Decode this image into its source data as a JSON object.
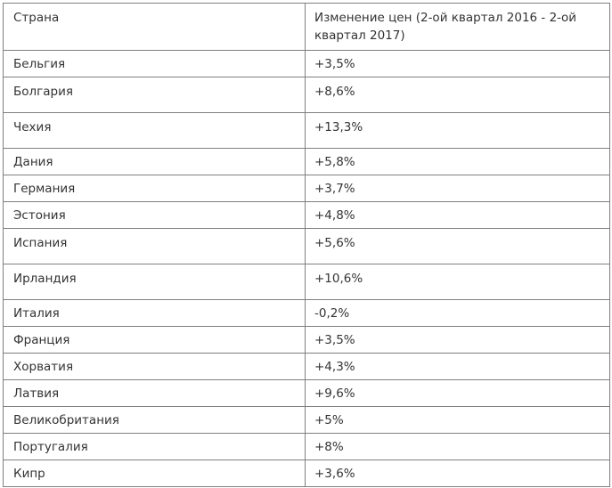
{
  "table": {
    "header": {
      "country": "Страна",
      "change": "Изменение цен (2-ой квартал 2016 - 2-ой квартал 2017)"
    },
    "rows": [
      {
        "country": "Бельгия",
        "change": "+3,5%"
      },
      {
        "country": "Болгария",
        "change": "+8,6%"
      },
      {
        "country": "Чехия",
        "change": "+13,3%"
      },
      {
        "country": "Дания",
        "change": "+5,8%"
      },
      {
        "country": "Германия",
        "change": "+3,7%"
      },
      {
        "country": "Эстония",
        "change": "+4,8%"
      },
      {
        "country": "Испания",
        "change": "+5,6%"
      },
      {
        "country": "Ирландия",
        "change": "+10,6%"
      },
      {
        "country": "Италия",
        "change": "-0,2%"
      },
      {
        "country": "Франция",
        "change": "+3,5%"
      },
      {
        "country": "Хорватия",
        "change": "+4,3%"
      },
      {
        "country": "Латвия",
        "change": "+9,6%"
      },
      {
        "country": "Великобритания",
        "change": "+5%"
      },
      {
        "country": "Португалия",
        "change": "+8%"
      },
      {
        "country": "Кипр",
        "change": "+3,6%"
      }
    ]
  }
}
